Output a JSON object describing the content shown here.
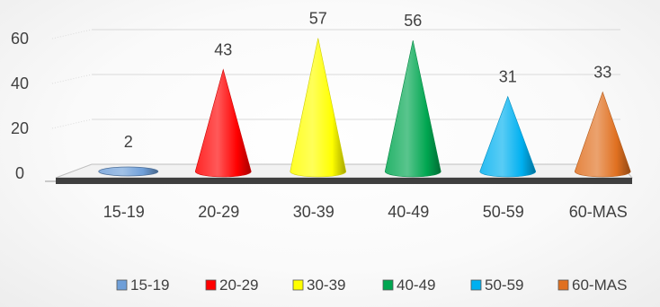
{
  "chart_data": {
    "type": "bar",
    "style": "3d-cone",
    "categories": [
      "15-19",
      "20-29",
      "30-39",
      "40-49",
      "50-59",
      "60-MAS"
    ],
    "values": [
      2,
      43,
      57,
      56,
      31,
      33
    ],
    "colors": [
      "#6f9fd8",
      "#ff0000",
      "#ffff00",
      "#00a650",
      "#00b0f0",
      "#e07020"
    ],
    "yticks": [
      "0",
      "20",
      "40",
      "60"
    ],
    "ylim": [
      0,
      60
    ],
    "grid": true,
    "legend": {
      "position": "bottom-right",
      "entries": [
        "15-19",
        "20-29",
        "30-39",
        "40-49",
        "50-59",
        "60-MAS"
      ]
    }
  }
}
